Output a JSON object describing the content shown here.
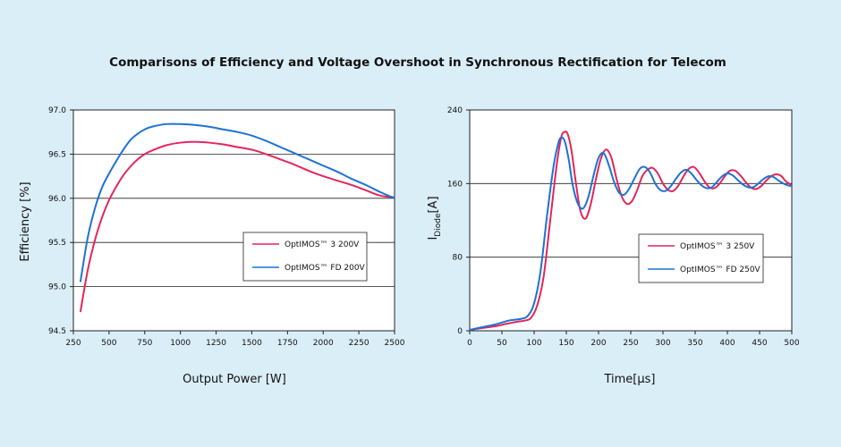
{
  "title": "Comparisons of Efficiency and Voltage Overshoot in Synchronous Rectification for Telecom",
  "colors": {
    "background": "#daeef8",
    "series_red": "#e2265b",
    "series_blue": "#1d72d3"
  },
  "chart_data": [
    {
      "type": "line",
      "xlabel": "Output Power [W]",
      "ylabel": "Efficiency [%]",
      "xlim": [
        250,
        2500
      ],
      "ylim": [
        94.5,
        97.0
      ],
      "xticks": [
        "250",
        "500",
        "750",
        "1000",
        "1250",
        "1500",
        "1750",
        "2000",
        "2250",
        "2500"
      ],
      "yticks": [
        "94.5",
        "95.0",
        "95.5",
        "96.0",
        "96.5",
        "97.0"
      ],
      "grid": "horizontal",
      "legend_position": "lower-right",
      "series": [
        {
          "name": "OptIMOS™ 3 200V",
          "color": "#e2265b",
          "x": [
            300,
            350,
            400,
            450,
            500,
            550,
            600,
            650,
            700,
            750,
            800,
            900,
            1000,
            1100,
            1200,
            1300,
            1400,
            1500,
            1600,
            1700,
            1800,
            1900,
            2000,
            2100,
            2200,
            2300,
            2400,
            2500
          ],
          "y": [
            94.72,
            95.18,
            95.52,
            95.78,
            95.98,
            96.13,
            96.26,
            96.36,
            96.44,
            96.5,
            96.54,
            96.6,
            96.63,
            96.64,
            96.63,
            96.61,
            96.58,
            96.55,
            96.5,
            96.44,
            96.38,
            96.31,
            96.25,
            96.2,
            96.15,
            96.09,
            96.03,
            96.01
          ]
        },
        {
          "name": "OptIMOS™ FD 200V",
          "color": "#1d72d3",
          "x": [
            300,
            350,
            400,
            450,
            500,
            550,
            600,
            650,
            700,
            750,
            800,
            900,
            1000,
            1100,
            1200,
            1300,
            1400,
            1500,
            1600,
            1700,
            1800,
            1900,
            2000,
            2100,
            2200,
            2300,
            2400,
            2500
          ],
          "y": [
            95.06,
            95.55,
            95.88,
            96.12,
            96.28,
            96.42,
            96.55,
            96.66,
            96.73,
            96.78,
            96.81,
            96.84,
            96.84,
            96.83,
            96.81,
            96.78,
            96.75,
            96.71,
            96.65,
            96.58,
            96.51,
            96.44,
            96.37,
            96.3,
            96.22,
            96.15,
            96.07,
            96.0
          ]
        }
      ]
    },
    {
      "type": "line",
      "xlabel": "Time[µs]",
      "ylabel": "I",
      "ylabel_sub": "Diode",
      "ylabel_suffix": "[A]",
      "xlim": [
        0,
        500
      ],
      "ylim": [
        0,
        240
      ],
      "xticks": [
        "0",
        "50",
        "100",
        "150",
        "200",
        "250",
        "300",
        "350",
        "400",
        "450",
        "500"
      ],
      "yticks": [
        "0",
        "80",
        "160",
        "240"
      ],
      "grid": "horizontal",
      "legend_position": "center-right",
      "series": [
        {
          "name": "OptIMOS™ 3 250V",
          "color": "#e2265b",
          "x": [
            0,
            20,
            40,
            60,
            75,
            85,
            95,
            105,
            115,
            125,
            135,
            142,
            147,
            152,
            158,
            165,
            172,
            180,
            188,
            196,
            204,
            212,
            220,
            228,
            236,
            244,
            252,
            260,
            268,
            276,
            284,
            292,
            300,
            308,
            316,
            324,
            332,
            340,
            348,
            356,
            364,
            372,
            380,
            388,
            396,
            404,
            412,
            420,
            428,
            436,
            444,
            452,
            460,
            468,
            476,
            484,
            490,
            500
          ],
          "y": [
            1,
            3,
            5,
            8,
            10,
            11,
            14,
            28,
            60,
            120,
            180,
            210,
            216,
            214,
            196,
            160,
            130,
            122,
            138,
            165,
            188,
            197,
            188,
            165,
            146,
            138,
            141,
            153,
            168,
            175,
            177,
            171,
            160,
            153,
            152,
            158,
            168,
            176,
            178,
            172,
            163,
            156,
            155,
            160,
            168,
            174,
            174,
            169,
            162,
            156,
            154,
            157,
            163,
            168,
            170,
            168,
            163,
            158
          ]
        },
        {
          "name": "OptIMOS™ FD 250V",
          "color": "#1d72d3",
          "x": [
            0,
            20,
            40,
            60,
            70,
            80,
            90,
            100,
            110,
            120,
            130,
            138,
            143,
            148,
            154,
            160,
            168,
            176,
            184,
            192,
            200,
            208,
            216,
            224,
            232,
            240,
            248,
            256,
            264,
            272,
            280,
            288,
            296,
            304,
            312,
            320,
            328,
            336,
            344,
            352,
            360,
            368,
            376,
            384,
            392,
            400,
            408,
            416,
            424,
            432,
            440,
            448,
            456,
            464,
            472,
            480,
            490,
            500
          ],
          "y": [
            1,
            4,
            7,
            11,
            12,
            13,
            16,
            30,
            65,
            125,
            178,
            205,
            210,
            205,
            185,
            158,
            138,
            133,
            145,
            168,
            188,
            193,
            180,
            162,
            150,
            148,
            155,
            166,
            176,
            178,
            172,
            160,
            153,
            152,
            157,
            165,
            172,
            175,
            171,
            164,
            158,
            155,
            156,
            162,
            168,
            171,
            169,
            164,
            159,
            156,
            156,
            160,
            165,
            168,
            167,
            163,
            159,
            157
          ]
        }
      ]
    }
  ]
}
